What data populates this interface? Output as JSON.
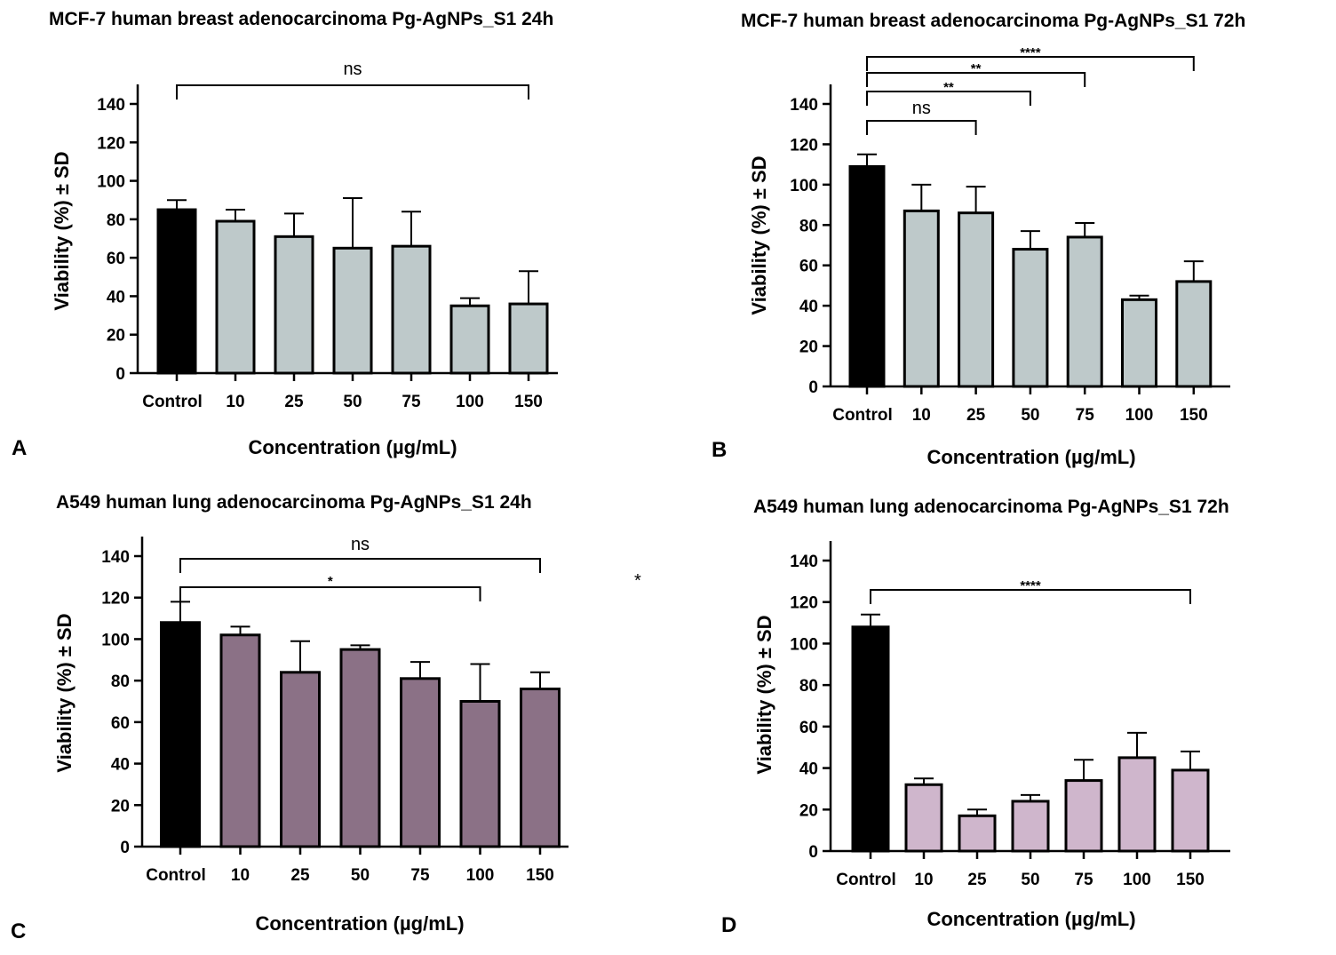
{
  "figure": {
    "stray_mark": "*"
  },
  "colors": {
    "control": "#000000",
    "mcf7": "#bec9ca",
    "a549_24h": "#8b7186",
    "a549_72h": "#cfb6cc",
    "stroke": "#000000"
  },
  "chart_data": [
    {
      "panel": "A",
      "type": "bar",
      "title": "MCF-7 human breast adenocarcinoma Pg-AgNPs_S1 24h",
      "xlabel": "Concentration (µg/mL)",
      "ylabel": "Viability (%) ± SD",
      "categories": [
        "Control",
        "10",
        "25",
        "50",
        "75",
        "100",
        "150"
      ],
      "values": [
        85,
        79,
        71,
        65,
        66,
        35,
        36
      ],
      "errors": [
        5,
        6,
        12,
        26,
        18,
        4,
        17
      ],
      "ylim": [
        0,
        140
      ],
      "yticks": [
        "0",
        "20",
        "40",
        "60",
        "80",
        "100",
        "120",
        "140"
      ],
      "fill": "mcf7",
      "comparisons": [
        {
          "from": 0,
          "to": 6,
          "label": "ns"
        }
      ]
    },
    {
      "panel": "B",
      "type": "bar",
      "title": "MCF-7 human breast adenocarcinoma Pg-AgNPs_S1 72h",
      "xlabel": "Concentration (µg/mL)",
      "ylabel": "Viability (%) ± SD",
      "categories": [
        "Control",
        "10",
        "25",
        "50",
        "75",
        "100",
        "150"
      ],
      "values": [
        109,
        87,
        86,
        68,
        74,
        43,
        52
      ],
      "errors": [
        6,
        13,
        13,
        9,
        7,
        2,
        10
      ],
      "ylim": [
        0,
        140
      ],
      "yticks": [
        "0",
        "20",
        "40",
        "60",
        "80",
        "100",
        "120",
        "140"
      ],
      "fill": "mcf7",
      "comparisons": [
        {
          "from": 0,
          "to": 2,
          "label": "ns"
        },
        {
          "from": 0,
          "to": 3,
          "label": "**"
        },
        {
          "from": 0,
          "to": 4,
          "label": "**"
        },
        {
          "from": 0,
          "to": 6,
          "label": "****"
        }
      ]
    },
    {
      "panel": "C",
      "type": "bar",
      "title": "A549 human lung adenocarcinoma Pg-AgNPs_S1 24h",
      "xlabel": "Concentration (µg/mL)",
      "ylabel": "Viability (%) ± SD",
      "categories": [
        "Control",
        "10",
        "25",
        "50",
        "75",
        "100",
        "150"
      ],
      "values": [
        108,
        102,
        84,
        95,
        81,
        70,
        76
      ],
      "errors": [
        10,
        4,
        15,
        2,
        8,
        18,
        8
      ],
      "ylim": [
        0,
        140
      ],
      "yticks": [
        "0",
        "20",
        "40",
        "60",
        "80",
        "100",
        "120",
        "140"
      ],
      "fill": "a549_24h",
      "comparisons": [
        {
          "from": 0,
          "to": 6,
          "label": "ns"
        },
        {
          "from": 0,
          "to": 5,
          "label": "*"
        }
      ]
    },
    {
      "panel": "D",
      "type": "bar",
      "title": "A549 human lung adenocarcinoma Pg-AgNPs_S1 72h",
      "xlabel": "Concentration (µg/mL)",
      "ylabel": "Viability (%) ± SD",
      "categories": [
        "Control",
        "10",
        "25",
        "50",
        "75",
        "100",
        "150"
      ],
      "values": [
        108,
        32,
        17,
        24,
        34,
        45,
        39
      ],
      "errors": [
        6,
        3,
        3,
        3,
        10,
        12,
        9
      ],
      "ylim": [
        0,
        140
      ],
      "yticks": [
        "0",
        "20",
        "40",
        "60",
        "80",
        "100",
        "120",
        "140"
      ],
      "fill": "a549_72h",
      "comparisons": [
        {
          "from": 0,
          "to": 6,
          "label": "****"
        }
      ]
    }
  ]
}
